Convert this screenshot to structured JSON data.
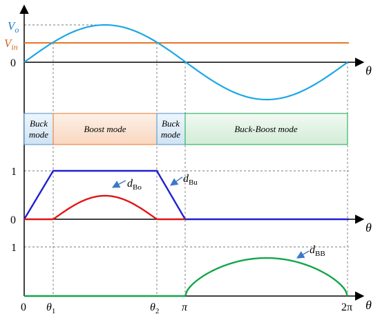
{
  "labels": {
    "vo_sym": "V",
    "vo_sub": "o",
    "vin_sym": "V",
    "vin_sub": "in",
    "zero": "0",
    "one": "1",
    "theta": "θ",
    "theta_sub1": "1",
    "theta_sub2": "2",
    "pi": "π",
    "two_pi": "2π",
    "dbo_sym": "d",
    "dbo_sub": "Bo",
    "dbu_sym": "d",
    "dbu_sub": "Bu",
    "dbb_sym": "d",
    "dbb_sub": "BB"
  },
  "modes": {
    "buck1_line1": "Buck",
    "buck1_line2": "mode",
    "boost": "Boost mode",
    "buck2_line1": "Buck",
    "buck2_line2": "mode",
    "buckboost": "Buck-Boost mode"
  },
  "colors": {
    "vo": "#1aa7e6",
    "vin": "#e87528",
    "dbu": "#1f1fd0",
    "dbo": "#e21414",
    "dbb": "#12a64a",
    "buck_fill": "#dcebf7",
    "boost_fill": "#fbe2d0",
    "bb_fill": "#dff2e1"
  }
}
